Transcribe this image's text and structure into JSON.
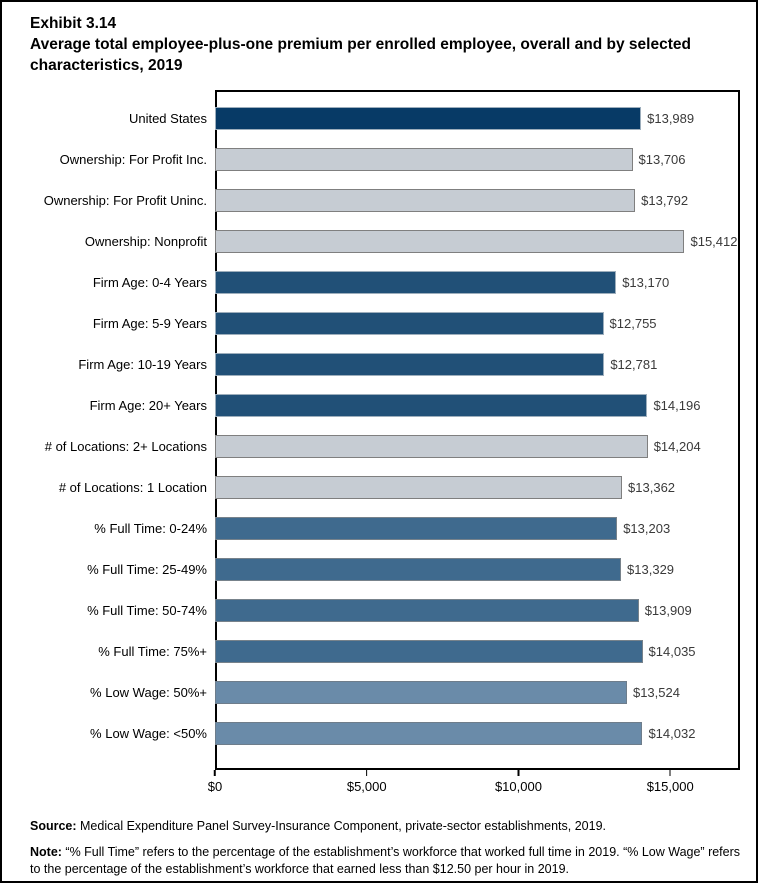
{
  "title": {
    "exhibit": "Exhibit 3.14",
    "text": "Average total employee-plus-one premium per enrolled employee, overall and by selected characteristics, 2019"
  },
  "chart_data": {
    "type": "bar",
    "orientation": "horizontal",
    "title": "Average total employee-plus-one premium per enrolled employee, overall and by selected characteristics, 2019",
    "xlabel": "",
    "ylabel": "",
    "grid": false,
    "legend": "none",
    "xlim": [
      0,
      17300
    ],
    "x_ticks": [
      "$0",
      "$5,000",
      "$10,000",
      "$15,000"
    ],
    "x_tick_values": [
      0,
      5000,
      10000,
      15000
    ],
    "rows": [
      {
        "label": "United States",
        "value": 13989,
        "display": "$13,989",
        "group": "us"
      },
      {
        "label": "Ownership: For Profit Inc.",
        "value": 13706,
        "display": "$13,706",
        "group": "gray"
      },
      {
        "label": "Ownership: For Profit Uninc.",
        "value": 13792,
        "display": "$13,792",
        "group": "gray"
      },
      {
        "label": "Ownership: Nonprofit",
        "value": 15412,
        "display": "$15,412",
        "group": "gray"
      },
      {
        "label": "Firm Age: 0-4 Years",
        "value": 13170,
        "display": "$13,170",
        "group": "navy"
      },
      {
        "label": "Firm Age: 5-9 Years",
        "value": 12755,
        "display": "$12,755",
        "group": "navy"
      },
      {
        "label": "Firm Age: 10-19 Years",
        "value": 12781,
        "display": "$12,781",
        "group": "navy"
      },
      {
        "label": "Firm Age: 20+ Years",
        "value": 14196,
        "display": "$14,196",
        "group": "navy"
      },
      {
        "label": "# of Locations: 2+ Locations",
        "value": 14204,
        "display": "$14,204",
        "group": "gray"
      },
      {
        "label": "# of Locations: 1 Location",
        "value": 13362,
        "display": "$13,362",
        "group": "gray"
      },
      {
        "label": "% Full Time: 0-24%",
        "value": 13203,
        "display": "$13,203",
        "group": "blue"
      },
      {
        "label": "% Full Time: 25-49%",
        "value": 13329,
        "display": "$13,329",
        "group": "blue"
      },
      {
        "label": "% Full Time: 50-74%",
        "value": 13909,
        "display": "$13,909",
        "group": "blue"
      },
      {
        "label": "% Full Time: 75%+",
        "value": 14035,
        "display": "$14,035",
        "group": "blue"
      },
      {
        "label": "% Low Wage: 50%+",
        "value": 13524,
        "display": "$13,524",
        "group": "steel"
      },
      {
        "label": "% Low Wage: <50%",
        "value": 14032,
        "display": "$14,032",
        "group": "steel"
      }
    ],
    "colors": {
      "us": "#073a66",
      "gray": "#c6ccd3",
      "navy": "#215077",
      "blue": "#3f6a8e",
      "steel": "#6a8ba9"
    },
    "bar_border_colors": {
      "us": "#9daebc",
      "gray": "#7f7f7f",
      "navy": "#9daebc",
      "blue": "#77828b",
      "steel": "#6e7d8b"
    }
  },
  "footer": {
    "source_label": "Source:",
    "source_text": " Medical Expenditure Panel Survey-Insurance Component, private-sector establishments, 2019.",
    "note_label": "Note:",
    "note_text": " “% Full Time” refers to the percentage of the establishment’s workforce that worked full time in 2019. “% Low Wage” refers to the percentage of the establishment’s workforce that earned less than $12.50 per hour in 2019."
  }
}
